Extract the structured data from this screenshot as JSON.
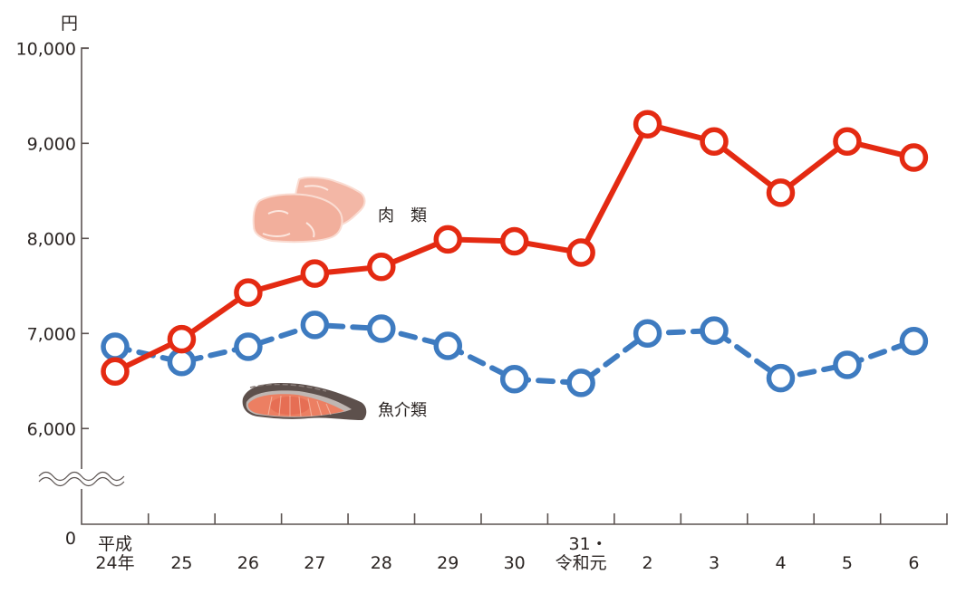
{
  "chart_data": {
    "type": "line",
    "title": "",
    "xlabel": "",
    "ylabel": "円",
    "y_unit": "円",
    "ylim": [
      6000,
      10000
    ],
    "y_axis_break": true,
    "y_ticks": [
      {
        "value": 10000,
        "label": "10,000"
      },
      {
        "value": 9000,
        "label": "9,000"
      },
      {
        "value": 8000,
        "label": "8,000"
      },
      {
        "value": 7000,
        "label": "7,000"
      },
      {
        "value": 6000,
        "label": "6,000"
      },
      {
        "value": 0,
        "label": "0"
      }
    ],
    "grid": false,
    "legend_position": "inline labels with illustrations",
    "categories": [
      {
        "line1": "平成",
        "line2": "24年"
      },
      {
        "line1": "",
        "line2": "25"
      },
      {
        "line1": "",
        "line2": "26"
      },
      {
        "line1": "",
        "line2": "27"
      },
      {
        "line1": "",
        "line2": "28"
      },
      {
        "line1": "",
        "line2": "29"
      },
      {
        "line1": "",
        "line2": "30"
      },
      {
        "line1": "31・",
        "line2": "令和元"
      },
      {
        "line1": "",
        "line2": "2"
      },
      {
        "line1": "",
        "line2": "3"
      },
      {
        "line1": "",
        "line2": "4"
      },
      {
        "line1": "",
        "line2": "5"
      },
      {
        "line1": "",
        "line2": "6"
      }
    ],
    "series": [
      {
        "name": "肉　類",
        "color": "#E42A12",
        "style": "solid",
        "values": [
          6600,
          6940,
          7430,
          7630,
          7700,
          7990,
          7970,
          7850,
          9200,
          9020,
          8480,
          9020,
          8850
        ]
      },
      {
        "name": "魚介類",
        "color": "#3E7BC0",
        "style": "dashed",
        "values": [
          6860,
          6700,
          6860,
          7090,
          7050,
          6870,
          6520,
          6480,
          7000,
          7030,
          6530,
          6670,
          6920
        ]
      }
    ],
    "annotations": [
      {
        "text": "肉　類",
        "icon": "meat-illustration"
      },
      {
        "text": "魚介類",
        "icon": "salmon-fillet-illustration"
      }
    ]
  },
  "labels": {
    "unit": "円",
    "meat": "肉　類",
    "fish": "魚介類"
  },
  "colors": {
    "axis": "#5B5351",
    "text": "#2B2523",
    "meat": "#E42A12",
    "fish": "#3E7BC0"
  }
}
